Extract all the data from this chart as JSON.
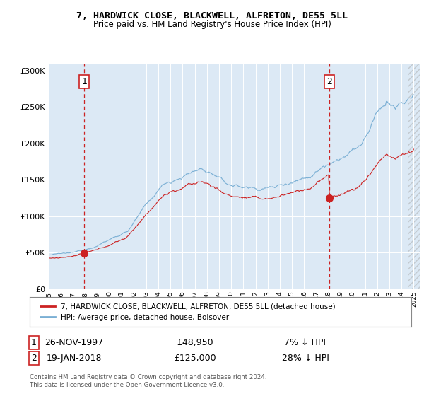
{
  "title1": "7, HARDWICK CLOSE, BLACKWELL, ALFRETON, DE55 5LL",
  "title2": "Price paid vs. HM Land Registry's House Price Index (HPI)",
  "legend_line1": "7, HARDWICK CLOSE, BLACKWELL, ALFRETON, DE55 5LL (detached house)",
  "legend_line2": "HPI: Average price, detached house, Bolsover",
  "annotation1_label": "1",
  "annotation1_date": "26-NOV-1997",
  "annotation1_price": "£48,950",
  "annotation1_hpi": "7% ↓ HPI",
  "annotation2_label": "2",
  "annotation2_date": "19-JAN-2018",
  "annotation2_price": "£125,000",
  "annotation2_hpi": "28% ↓ HPI",
  "footer": "Contains HM Land Registry data © Crown copyright and database right 2024.\nThis data is licensed under the Open Government Licence v3.0.",
  "hpi_color": "#7aafd4",
  "price_color": "#cc2222",
  "background_color": "#dce9f5",
  "plot_bg_color": "#dce9f5",
  "ylim": [
    0,
    310000
  ],
  "yticks": [
    0,
    50000,
    100000,
    150000,
    200000,
    250000,
    300000
  ],
  "sale1_year": 1997.917,
  "sale1_price": 48950,
  "sale2_year": 2018.05,
  "sale2_price": 125000
}
